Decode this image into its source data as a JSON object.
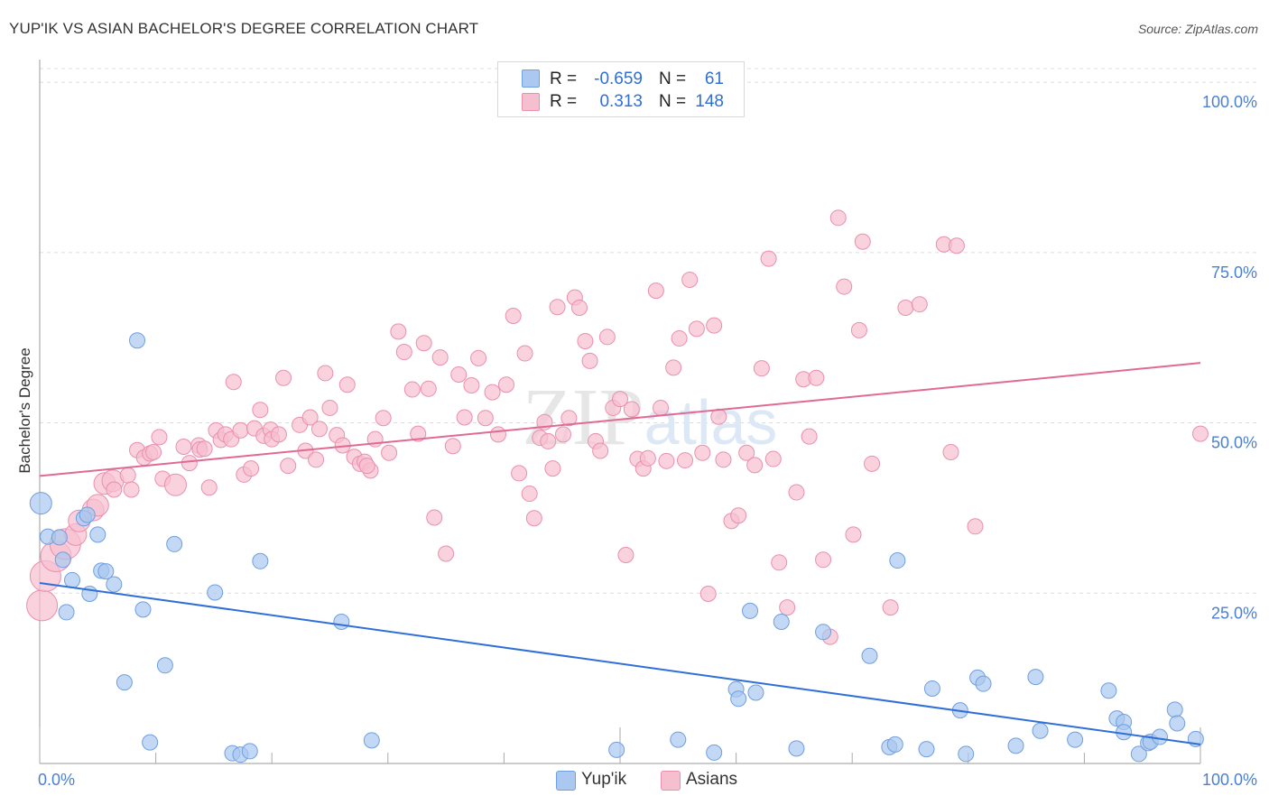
{
  "title": "YUP'IK VS ASIAN BACHELOR'S DEGREE CORRELATION CHART",
  "source": "Source: ZipAtlas.com",
  "watermark": "ZIPatlas",
  "legend": {
    "rows": [
      {
        "name": "Yup'ik",
        "r_label": "R =",
        "r_value": "-0.659",
        "n_label": "N =",
        "n_value": "61",
        "color": "#aac8f0",
        "border": "#6f9fe0"
      },
      {
        "name": "Asians",
        "r_label": "R =",
        "r_value": "0.313",
        "n_label": "N =",
        "n_value": "148",
        "color": "#f6bfd0",
        "border": "#ea8fae"
      }
    ]
  },
  "colors": {
    "blue_fill": "#aac8f0",
    "blue_stroke": "#6f9fe0",
    "blue_line": "#2f6fd8",
    "pink_fill": "#f6bfd0",
    "pink_stroke": "#ea8fae",
    "pink_line": "#e06a94",
    "axis_label": "#4a7fd4",
    "grid": "#dddddd"
  },
  "chart_data": {
    "type": "scatter",
    "title": "YUP'IK VS ASIAN BACHELOR'S DEGREE CORRELATION CHART",
    "xlabel": "",
    "ylabel": "Bachelor's Degree",
    "xlim": [
      0,
      100
    ],
    "ylim": [
      0,
      102
    ],
    "x_tick_labels": [
      "0.0%",
      "100.0%"
    ],
    "y_ticks": [
      25,
      50,
      75,
      100
    ],
    "y_tick_labels": [
      "25.0%",
      "50.0%",
      "75.0%",
      "100.0%"
    ],
    "grid": true,
    "legend_position": "top-center",
    "series": [
      {
        "name": "Yup'ik",
        "trend": {
          "x": [
            0,
            100
          ],
          "y": [
            26.5,
            2.8
          ]
        },
        "points": [
          [
            0.1,
            38.2,
            2
          ],
          [
            0.7,
            33.3,
            1
          ],
          [
            1.7,
            33.2,
            1
          ],
          [
            2.0,
            29.9,
            1
          ],
          [
            2.3,
            22.2,
            1
          ],
          [
            2.8,
            26.9,
            1
          ],
          [
            3.8,
            36.0,
            1
          ],
          [
            4.1,
            36.5,
            1
          ],
          [
            4.3,
            24.9,
            1
          ],
          [
            5.0,
            33.6,
            1
          ],
          [
            5.3,
            28.3,
            1
          ],
          [
            5.7,
            28.2,
            1
          ],
          [
            6.4,
            26.3,
            1
          ],
          [
            7.3,
            11.9,
            1
          ],
          [
            8.4,
            62.1,
            1
          ],
          [
            8.9,
            22.6,
            1
          ],
          [
            9.5,
            3.1,
            1
          ],
          [
            10.8,
            14.4,
            1
          ],
          [
            11.6,
            32.2,
            1
          ],
          [
            15.1,
            25.1,
            1
          ],
          [
            16.6,
            1.5,
            1
          ],
          [
            17.3,
            1.3,
            1
          ],
          [
            18.1,
            1.8,
            1
          ],
          [
            19.0,
            29.7,
            1
          ],
          [
            26.0,
            20.8,
            1
          ],
          [
            28.6,
            3.4,
            1
          ],
          [
            49.7,
            2.0,
            1
          ],
          [
            55.0,
            3.5,
            1
          ],
          [
            58.1,
            1.6,
            1
          ],
          [
            60.0,
            10.9,
            1
          ],
          [
            60.2,
            9.5,
            1
          ],
          [
            61.2,
            22.4,
            1
          ],
          [
            61.7,
            10.4,
            1
          ],
          [
            63.9,
            20.8,
            1
          ],
          [
            65.2,
            2.2,
            1
          ],
          [
            67.5,
            19.3,
            1
          ],
          [
            71.5,
            15.8,
            1
          ],
          [
            73.2,
            2.4,
            1
          ],
          [
            73.7,
            2.8,
            1
          ],
          [
            73.9,
            29.8,
            1
          ],
          [
            76.4,
            2.1,
            1
          ],
          [
            76.9,
            11.0,
            1
          ],
          [
            79.3,
            7.8,
            1
          ],
          [
            79.8,
            1.4,
            1
          ],
          [
            80.8,
            12.6,
            1
          ],
          [
            81.3,
            11.7,
            1
          ],
          [
            84.1,
            2.6,
            1
          ],
          [
            85.8,
            12.7,
            1
          ],
          [
            86.2,
            4.8,
            1
          ],
          [
            89.2,
            3.5,
            1
          ],
          [
            92.1,
            10.7,
            1
          ],
          [
            92.8,
            6.6,
            1
          ],
          [
            93.4,
            6.1,
            1
          ],
          [
            93.4,
            4.6,
            1
          ],
          [
            94.7,
            1.4,
            1
          ],
          [
            95.5,
            3.0,
            1
          ],
          [
            95.7,
            3.2,
            1
          ],
          [
            96.5,
            3.9,
            1
          ],
          [
            97.8,
            7.9,
            1
          ],
          [
            98.0,
            5.9,
            1
          ],
          [
            99.6,
            3.6,
            1
          ]
        ]
      },
      {
        "name": "Asians",
        "trend": {
          "x": [
            0,
            100
          ],
          "y": [
            42.2,
            58.8
          ]
        },
        "points": [
          [
            0.2,
            23.2,
            3
          ],
          [
            0.5,
            27.5,
            3
          ],
          [
            1.4,
            30.4,
            3
          ],
          [
            2.2,
            32.2,
            3
          ],
          [
            3.1,
            33.6,
            2
          ],
          [
            3.4,
            35.6,
            2
          ],
          [
            4.6,
            37.2,
            2
          ],
          [
            5.0,
            37.9,
            2
          ],
          [
            5.6,
            41.1,
            2
          ],
          [
            6.3,
            41.5,
            2
          ],
          [
            6.4,
            40.2,
            1
          ],
          [
            7.6,
            42.3,
            1
          ],
          [
            7.9,
            40.2,
            1
          ],
          [
            8.4,
            46.0,
            1
          ],
          [
            9.0,
            44.9,
            1
          ],
          [
            9.5,
            45.5,
            1
          ],
          [
            9.8,
            45.7,
            1
          ],
          [
            10.3,
            47.9,
            1
          ],
          [
            10.6,
            41.8,
            1
          ],
          [
            11.7,
            40.9,
            2
          ],
          [
            12.4,
            46.5,
            1
          ],
          [
            12.9,
            44.1,
            1
          ],
          [
            13.7,
            46.7,
            1
          ],
          [
            13.8,
            46.1,
            1
          ],
          [
            14.2,
            46.2,
            1
          ],
          [
            14.6,
            40.5,
            1
          ],
          [
            15.2,
            48.9,
            1
          ],
          [
            15.6,
            47.5,
            1
          ],
          [
            16.0,
            48.3,
            1
          ],
          [
            16.5,
            47.6,
            1
          ],
          [
            16.7,
            56.0,
            1
          ],
          [
            17.3,
            48.9,
            1
          ],
          [
            17.6,
            42.4,
            1
          ],
          [
            18.2,
            43.3,
            1
          ],
          [
            18.5,
            49.2,
            1
          ],
          [
            19.0,
            51.9,
            1
          ],
          [
            19.3,
            48.1,
            1
          ],
          [
            19.9,
            49.0,
            1
          ],
          [
            20.0,
            47.6,
            1
          ],
          [
            20.6,
            48.3,
            1
          ],
          [
            21.0,
            56.6,
            1
          ],
          [
            21.4,
            43.7,
            1
          ],
          [
            22.4,
            49.7,
            1
          ],
          [
            22.9,
            45.9,
            1
          ],
          [
            23.3,
            50.8,
            1
          ],
          [
            23.8,
            44.6,
            1
          ],
          [
            24.1,
            49.1,
            1
          ],
          [
            24.6,
            57.3,
            1
          ],
          [
            25.0,
            52.2,
            1
          ],
          [
            25.6,
            48.2,
            1
          ],
          [
            26.1,
            46.7,
            1
          ],
          [
            26.5,
            55.6,
            1
          ],
          [
            27.1,
            45.0,
            1
          ],
          [
            27.6,
            44.0,
            1
          ],
          [
            28.0,
            44.3,
            1
          ],
          [
            28.5,
            43.0,
            1
          ],
          [
            28.9,
            47.6,
            1
          ],
          [
            29.6,
            50.7,
            1
          ],
          [
            30.1,
            45.6,
            1
          ],
          [
            30.9,
            63.4,
            1
          ],
          [
            31.4,
            60.4,
            1
          ],
          [
            32.1,
            54.9,
            1
          ],
          [
            32.6,
            48.4,
            1
          ],
          [
            33.1,
            61.7,
            1
          ],
          [
            33.5,
            55.0,
            1
          ],
          [
            34.0,
            36.1,
            1
          ],
          [
            34.5,
            59.6,
            1
          ],
          [
            35.0,
            30.8,
            1
          ],
          [
            35.6,
            46.6,
            1
          ],
          [
            36.1,
            57.1,
            1
          ],
          [
            36.6,
            50.8,
            1
          ],
          [
            37.2,
            55.5,
            1
          ],
          [
            37.8,
            59.5,
            1
          ],
          [
            38.4,
            50.7,
            1
          ],
          [
            39.0,
            54.5,
            1
          ],
          [
            39.5,
            48.3,
            1
          ],
          [
            40.2,
            55.6,
            1
          ],
          [
            40.8,
            65.7,
            1
          ],
          [
            41.3,
            42.6,
            1
          ],
          [
            41.8,
            60.2,
            1
          ],
          [
            42.2,
            39.6,
            1
          ],
          [
            42.6,
            36.0,
            1
          ],
          [
            43.1,
            47.8,
            1
          ],
          [
            43.5,
            50.1,
            1
          ],
          [
            43.8,
            47.3,
            1
          ],
          [
            44.2,
            43.3,
            1
          ],
          [
            44.6,
            67.0,
            1
          ],
          [
            45.1,
            48.3,
            1
          ],
          [
            45.6,
            50.7,
            1
          ],
          [
            46.1,
            68.4,
            1
          ],
          [
            46.5,
            66.9,
            1
          ],
          [
            47.0,
            62.0,
            1
          ],
          [
            47.4,
            59.1,
            1
          ],
          [
            47.9,
            47.3,
            1
          ],
          [
            48.3,
            45.9,
            1
          ],
          [
            48.9,
            62.6,
            1
          ],
          [
            49.4,
            52.2,
            1
          ],
          [
            50.0,
            53.5,
            1
          ],
          [
            50.5,
            30.6,
            1
          ],
          [
            51.0,
            52.0,
            1
          ],
          [
            51.5,
            44.7,
            1
          ],
          [
            52.0,
            43.3,
            1
          ],
          [
            52.4,
            44.8,
            1
          ],
          [
            53.1,
            69.4,
            1
          ],
          [
            53.5,
            52.2,
            1
          ],
          [
            54.0,
            44.4,
            1
          ],
          [
            54.6,
            58.1,
            1
          ],
          [
            55.1,
            62.4,
            1
          ],
          [
            55.6,
            44.5,
            1
          ],
          [
            56.0,
            71.0,
            1
          ],
          [
            56.6,
            63.8,
            1
          ],
          [
            57.1,
            45.6,
            1
          ],
          [
            57.6,
            24.9,
            1
          ],
          [
            58.1,
            64.3,
            1
          ],
          [
            58.5,
            50.9,
            1
          ],
          [
            58.9,
            44.6,
            1
          ],
          [
            59.6,
            35.6,
            1
          ],
          [
            60.2,
            36.4,
            1
          ],
          [
            60.9,
            45.6,
            1
          ],
          [
            61.6,
            43.8,
            1
          ],
          [
            62.2,
            58.0,
            1
          ],
          [
            62.8,
            74.1,
            1
          ],
          [
            63.2,
            44.7,
            1
          ],
          [
            63.7,
            29.5,
            1
          ],
          [
            64.4,
            22.9,
            1
          ],
          [
            65.2,
            39.8,
            1
          ],
          [
            65.8,
            56.4,
            1
          ],
          [
            66.3,
            48.0,
            1
          ],
          [
            66.9,
            56.6,
            1
          ],
          [
            67.5,
            29.9,
            1
          ],
          [
            68.1,
            18.6,
            1
          ],
          [
            68.8,
            80.1,
            1
          ],
          [
            69.3,
            70.0,
            1
          ],
          [
            70.1,
            33.6,
            1
          ],
          [
            70.6,
            63.6,
            1
          ],
          [
            70.9,
            76.6,
            1
          ],
          [
            71.7,
            44.0,
            1
          ],
          [
            73.3,
            22.9,
            1
          ],
          [
            74.6,
            66.9,
            1
          ],
          [
            75.8,
            67.4,
            1
          ],
          [
            77.9,
            76.2,
            1
          ],
          [
            78.5,
            45.7,
            1
          ],
          [
            79.0,
            76.0,
            1
          ],
          [
            80.6,
            34.8,
            1
          ],
          [
            100.0,
            48.4,
            1
          ],
          [
            28.2,
            43.7,
            1
          ]
        ]
      }
    ]
  }
}
